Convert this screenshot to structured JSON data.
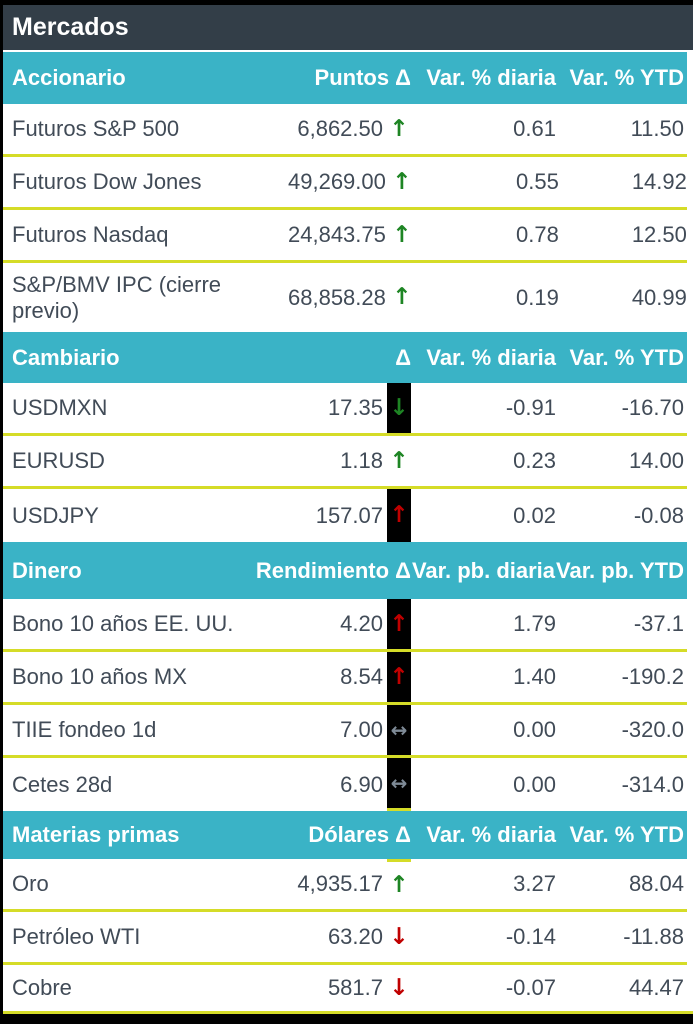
{
  "window_title": "Mercados",
  "colors": {
    "titlebar_bg": "#333E48",
    "section_header_bg": "#3AB3C6",
    "separator": "#D5DC28",
    "text": "#414B57",
    "arrow_up_positive": "#1E8524",
    "arrow_negative": "#C00000",
    "arrow_neutral": "#7E8A96",
    "highlight_box": "#000000"
  },
  "icons": {
    "up": "↑",
    "down": "↓",
    "flat": "↔"
  },
  "sections": [
    {
      "title": "Accionario",
      "columns": [
        "Puntos Δ",
        "Var. % diaria",
        "Var. % YTD"
      ],
      "rows": [
        {
          "name": "Futuros S&P 500",
          "value": "6,862.50",
          "daily": "0.61",
          "ytd": "11.50"
        },
        {
          "name": "Futuros Dow Jones",
          "value": "49,269.00",
          "daily": "0.55",
          "ytd": "14.92"
        },
        {
          "name": "Futuros Nasdaq",
          "value": "24,843.75",
          "daily": "0.78",
          "ytd": "12.50"
        },
        {
          "name": "S&P/BMV IPC (cierre previo)",
          "value": "68,858.28",
          "daily": "0.19",
          "ytd": "40.99"
        }
      ]
    },
    {
      "title": "Cambiario",
      "columns": [
        "Δ",
        "Var. % diaria",
        "Var. % YTD"
      ],
      "rows": [
        {
          "name": "USDMXN",
          "value": "17.35",
          "daily": "-0.91",
          "ytd": "-16.70"
        },
        {
          "name": "EURUSD",
          "value": "1.18",
          "daily": "0.23",
          "ytd": "14.00"
        },
        {
          "name": "USDJPY",
          "value": "157.07",
          "daily": "0.02",
          "ytd": "-0.08"
        }
      ]
    },
    {
      "title": "Dinero",
      "columns": [
        "Rendimiento Δ",
        "Var. pb. diaria",
        "Var. pb. YTD"
      ],
      "rows": [
        {
          "name": "Bono 10 años EE. UU.",
          "value": "4.20",
          "daily": "1.79",
          "ytd": "-37.1"
        },
        {
          "name": "Bono 10 años MX",
          "value": "8.54",
          "daily": "1.40",
          "ytd": "-190.2"
        },
        {
          "name": "TIIE fondeo 1d",
          "value": "7.00",
          "daily": "0.00",
          "ytd": "-320.0"
        },
        {
          "name": "Cetes 28d",
          "value": "6.90",
          "daily": "0.00",
          "ytd": "-314.0"
        }
      ]
    },
    {
      "title": "Materias primas",
      "columns": [
        "Dólares Δ",
        "Var. % diaria",
        "Var. % YTD"
      ],
      "rows": [
        {
          "name": "Oro",
          "value": "4,935.17",
          "daily": "3.27",
          "ytd": "88.04"
        },
        {
          "name": "Petróleo WTI",
          "value": "63.20",
          "daily": "-0.14",
          "ytd": "-11.88"
        },
        {
          "name": "Cobre",
          "value": "581.7",
          "daily": "-0.07",
          "ytd": "44.47"
        }
      ]
    }
  ]
}
